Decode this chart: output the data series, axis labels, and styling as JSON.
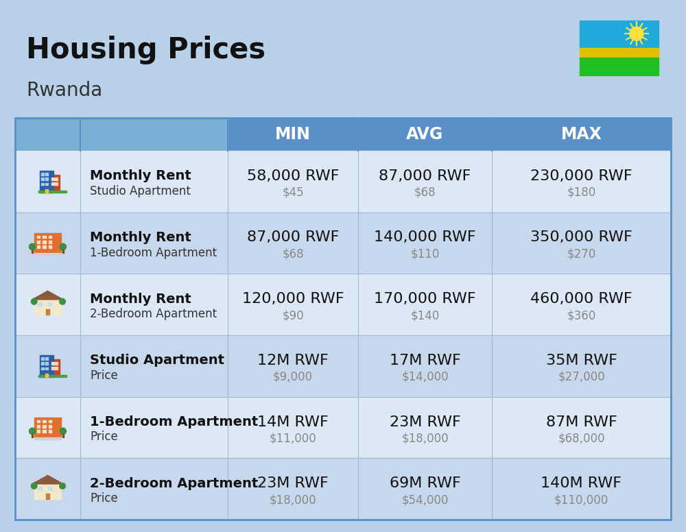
{
  "title": "Housing Prices",
  "subtitle": "Rwanda",
  "bg_color": "#b8d0e8",
  "header_bg": "#5b8fc7",
  "header_text_color": "#ffffff",
  "row_bg_even": "#dce8f5",
  "row_bg_odd": "#c8d8ec",
  "header_labels": [
    "MIN",
    "AVG",
    "MAX"
  ],
  "rows": [
    {
      "bold_label": "Monthly Rent",
      "sub_label": "Studio Apartment",
      "min_rwf": "58,000 RWF",
      "min_usd": "$45",
      "avg_rwf": "87,000 RWF",
      "avg_usd": "$68",
      "max_rwf": "230,000 RWF",
      "max_usd": "$180",
      "icon_type": "blue_studio"
    },
    {
      "bold_label": "Monthly Rent",
      "sub_label": "1-Bedroom Apartment",
      "min_rwf": "87,000 RWF",
      "min_usd": "$68",
      "avg_rwf": "140,000 RWF",
      "avg_usd": "$110",
      "max_rwf": "350,000 RWF",
      "max_usd": "$270",
      "icon_type": "orange_apartment"
    },
    {
      "bold_label": "Monthly Rent",
      "sub_label": "2-Bedroom Apartment",
      "min_rwf": "120,000 RWF",
      "min_usd": "$90",
      "avg_rwf": "170,000 RWF",
      "avg_usd": "$140",
      "max_rwf": "460,000 RWF",
      "max_usd": "$360",
      "icon_type": "beige_house"
    },
    {
      "bold_label": "Studio Apartment",
      "sub_label": "Price",
      "min_rwf": "12M RWF",
      "min_usd": "$9,000",
      "avg_rwf": "17M RWF",
      "avg_usd": "$14,000",
      "max_rwf": "35M RWF",
      "max_usd": "$27,000",
      "icon_type": "blue_studio"
    },
    {
      "bold_label": "1-Bedroom Apartment",
      "sub_label": "Price",
      "min_rwf": "14M RWF",
      "min_usd": "$11,000",
      "avg_rwf": "23M RWF",
      "avg_usd": "$18,000",
      "max_rwf": "87M RWF",
      "max_usd": "$68,000",
      "icon_type": "orange_apartment"
    },
    {
      "bold_label": "2-Bedroom Apartment",
      "sub_label": "Price",
      "min_rwf": "23M RWF",
      "min_usd": "$18,000",
      "avg_rwf": "69M RWF",
      "avg_usd": "$54,000",
      "max_rwf": "140M RWF",
      "max_usd": "$110,000",
      "icon_type": "beige_house"
    }
  ]
}
